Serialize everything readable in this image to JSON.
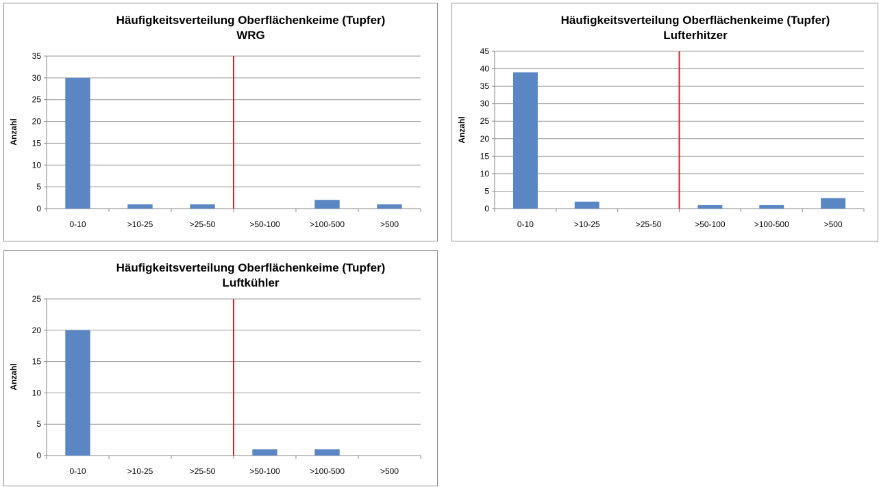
{
  "chart_data": [
    {
      "type": "bar",
      "title": "Häufigkeitsverteilung Oberflächenkeime (Tupfer)",
      "subtitle": "WRG",
      "ylabel": "Anzahl",
      "xlabel": "",
      "categories": [
        "0-10",
        ">10-25",
        ">25-50",
        ">50-100",
        ">100-500",
        ">500"
      ],
      "values": [
        30,
        1,
        1,
        0,
        2,
        1
      ],
      "ylim": [
        0,
        35
      ],
      "yticks": [
        0,
        5,
        10,
        15,
        20,
        25,
        30,
        35
      ],
      "grid": true,
      "legend": "none",
      "threshold_line": {
        "between": [
          ">25-50",
          ">50-100"
        ],
        "color": "#e02020"
      }
    },
    {
      "type": "bar",
      "title": "Häufigkeitsverteilung Oberflächenkeime (Tupfer)",
      "subtitle": "Lufterhitzer",
      "ylabel": "Anzahl",
      "xlabel": "",
      "categories": [
        "0-10",
        ">10-25",
        ">25-50",
        ">50-100",
        ">100-500",
        ">500"
      ],
      "values": [
        39,
        2,
        0,
        1,
        1,
        3
      ],
      "ylim": [
        0,
        45
      ],
      "yticks": [
        0,
        5,
        10,
        15,
        20,
        25,
        30,
        35,
        40,
        45
      ],
      "grid": true,
      "legend": "none",
      "threshold_line": {
        "between": [
          ">25-50",
          ">50-100"
        ],
        "color": "#e02020"
      }
    },
    {
      "type": "bar",
      "title": "Häufigkeitsverteilung Oberflächenkeime (Tupfer)",
      "subtitle": "Luftkühler",
      "ylabel": "Anzahl",
      "xlabel": "",
      "categories": [
        "0-10",
        ">10-25",
        ">25-50",
        ">50-100",
        ">100-500",
        ">500"
      ],
      "values": [
        20,
        0,
        0,
        1,
        1,
        0
      ],
      "ylim": [
        0,
        25
      ],
      "yticks": [
        0,
        5,
        10,
        15,
        20,
        25
      ],
      "grid": true,
      "legend": "none",
      "threshold_line": {
        "between": [
          ">25-50",
          ">50-100"
        ],
        "color": "#e02020"
      }
    }
  ],
  "colors": {
    "bar": "#5a86c4",
    "grid": "#9a9a9a",
    "axis": "#8a8a8a",
    "threshold": "#e02020"
  }
}
